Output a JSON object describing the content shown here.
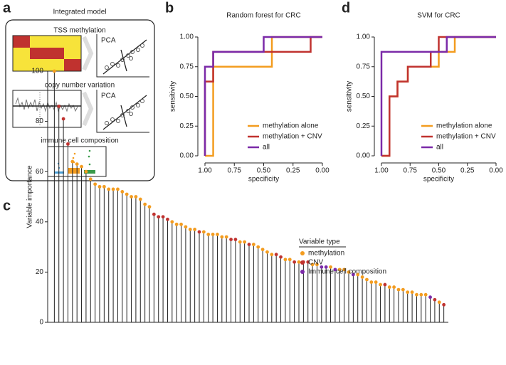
{
  "panel_labels": [
    "a",
    "b",
    "c",
    "d"
  ],
  "diagram": {
    "title": "Integrated model",
    "rows": [
      {
        "label": "TSS methylation",
        "pca": "PCA"
      },
      {
        "label": "copy number variation",
        "pca": "PCA"
      },
      {
        "label": "immune cell composition"
      }
    ]
  },
  "chart_data": [
    {
      "type": "line",
      "title": "Random forest for CRC",
      "xlabel": "specificity",
      "ylabel": "sensitivity",
      "xlim": [
        1,
        0
      ],
      "ylim": [
        0,
        1
      ],
      "xticks": [
        {
          "value": 1,
          "label": "1.00"
        },
        {
          "value": 0.75,
          "label": "0.75"
        },
        {
          "value": 0.5,
          "label": "0.50"
        },
        {
          "value": 0.25,
          "label": "0.25"
        },
        {
          "value": 0,
          "label": "0.00"
        }
      ],
      "yticks": [
        {
          "value": 0,
          "label": "0.00"
        },
        {
          "value": 0.25,
          "label": "0.25"
        },
        {
          "value": 0.5,
          "label": "0.50"
        },
        {
          "value": 0.75,
          "label": "0.75"
        },
        {
          "value": 1,
          "label": "1.00"
        }
      ],
      "legend": "lower right",
      "series": [
        {
          "name": "methylation alone",
          "color": "#f39c1f",
          "x": [
            1,
            0.93,
            0.93,
            0.43,
            0.43,
            0
          ],
          "values": [
            0,
            0,
            0.75,
            0.75,
            1,
            1
          ]
        },
        {
          "name": "methylation + CNV",
          "color": "#c0322f",
          "x": [
            1,
            1,
            0.93,
            0.93,
            0.1,
            0.1,
            0
          ],
          "values": [
            0,
            0.625,
            0.625,
            0.875,
            0.875,
            1,
            1
          ]
        },
        {
          "name": "all",
          "color": "#7b2aa8",
          "x": [
            1,
            1,
            0.93,
            0.93,
            0.5,
            0.5,
            0
          ],
          "values": [
            0,
            0.75,
            0.75,
            0.875,
            0.875,
            1,
            1
          ]
        }
      ]
    },
    {
      "type": "line",
      "title": "SVM for CRC",
      "xlabel": "specificity",
      "ylabel": "sensitivity",
      "xlim": [
        1,
        0
      ],
      "ylim": [
        0,
        1
      ],
      "xticks": [
        {
          "value": 1,
          "label": "1.00"
        },
        {
          "value": 0.75,
          "label": "0.75"
        },
        {
          "value": 0.5,
          "label": "0.50"
        },
        {
          "value": 0.25,
          "label": "0.25"
        },
        {
          "value": 0,
          "label": "0.00"
        }
      ],
      "yticks": [
        {
          "value": 0,
          "label": "0.00"
        },
        {
          "value": 0.25,
          "label": "0.25"
        },
        {
          "value": 0.5,
          "label": "0.50"
        },
        {
          "value": 0.75,
          "label": "0.75"
        },
        {
          "value": 1,
          "label": "1.00"
        }
      ],
      "legend": "lower right",
      "series": [
        {
          "name": "methylation alone",
          "color": "#f39c1f",
          "x": [
            1,
            0.93,
            0.93,
            0.86,
            0.86,
            0.77,
            0.77,
            0.5,
            0.5,
            0.36,
            0.36,
            0
          ],
          "values": [
            0,
            0,
            0.5,
            0.5,
            0.625,
            0.625,
            0.75,
            0.75,
            0.875,
            0.875,
            1,
            1
          ]
        },
        {
          "name": "methylation + CNV",
          "color": "#c0322f",
          "x": [
            1,
            0.93,
            0.93,
            0.86,
            0.86,
            0.77,
            0.77,
            0.57,
            0.57,
            0.5,
            0.5,
            0
          ],
          "values": [
            0,
            0,
            0.5,
            0.5,
            0.625,
            0.625,
            0.75,
            0.75,
            0.875,
            0.875,
            1,
            1
          ]
        },
        {
          "name": "all",
          "color": "#7b2aa8",
          "x": [
            1,
            1,
            0.43,
            0.43,
            0
          ],
          "values": [
            0,
            0.875,
            0.875,
            1,
            1
          ]
        }
      ]
    },
    {
      "type": "lollipop",
      "ylabel": "Variable importance",
      "legend_title": "Variable type",
      "legend": "upper right",
      "xlim": [
        0,
        88
      ],
      "ylim": [
        0,
        100
      ],
      "yticks": [
        0,
        20,
        40,
        60,
        80,
        100
      ],
      "series": [
        {
          "name": "methylation",
          "color": "#f39c1f",
          "x": [
            1,
            5,
            6,
            7,
            8,
            9,
            10,
            11,
            12,
            13,
            14,
            15,
            16,
            17,
            18,
            19,
            20,
            21,
            22,
            27,
            28,
            29,
            30,
            31,
            32,
            34,
            35,
            36,
            37,
            38,
            39,
            42,
            43,
            45,
            46,
            47,
            48,
            49,
            52,
            53,
            55,
            58,
            59,
            62,
            64,
            65,
            66,
            68,
            69,
            70,
            71,
            72,
            73,
            75,
            76,
            77,
            78,
            79,
            80,
            81,
            82,
            83,
            86
          ],
          "values": [
            100,
            64,
            63,
            62,
            60,
            57,
            55,
            54,
            54,
            53,
            53,
            53,
            52,
            51,
            50,
            50,
            49,
            47,
            46,
            40,
            39,
            39,
            38,
            37,
            37,
            36,
            35,
            35,
            35,
            34,
            34,
            32,
            32,
            31,
            30,
            29,
            28,
            27,
            25,
            25,
            24,
            23,
            23,
            22,
            21,
            21,
            20,
            19,
            18,
            17,
            16,
            16,
            15,
            14,
            14,
            13,
            13,
            12,
            12,
            11,
            11,
            11,
            8
          ]
        },
        {
          "name": "CNV",
          "color": "#c0322f",
          "x": [
            2,
            3,
            4,
            23,
            24,
            25,
            26,
            33,
            40,
            41,
            44,
            50,
            51,
            54,
            56,
            57,
            74,
            85,
            87
          ],
          "values": [
            86,
            81,
            71,
            43,
            42,
            42,
            41,
            36,
            33,
            33,
            31,
            27,
            26,
            24,
            24,
            24,
            15,
            9,
            7
          ]
        },
        {
          "name": "Immune cell composition",
          "color": "#7b2aa8",
          "x": [
            60,
            61,
            63,
            67,
            84
          ],
          "values": [
            22,
            22,
            21,
            19,
            10
          ]
        }
      ]
    }
  ]
}
